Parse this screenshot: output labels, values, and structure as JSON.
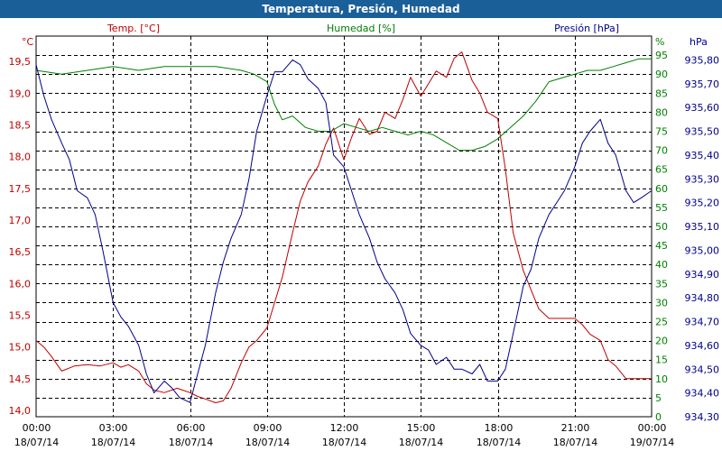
{
  "title": "Temperatura, Presión, Humedad",
  "colors": {
    "title_bar": "#1b5f98",
    "temperature": "#c00000",
    "humidity": "#008000",
    "pressure": "#00008b",
    "grid": "#000000"
  },
  "chart_data": {
    "type": "line",
    "grid": true,
    "axes": {
      "temperature": {
        "unit": "°C",
        "ylim": [
          13.9,
          19.9
        ],
        "ticks": [
          "14,0",
          "14,5",
          "15,0",
          "15,5",
          "16,0",
          "16,5",
          "17,0",
          "17,5",
          "18,0",
          "18,5",
          "19,0",
          "19,5"
        ]
      },
      "humidity": {
        "unit": "%",
        "ylim": [
          0,
          100
        ],
        "ticks": [
          "0",
          "5",
          "10",
          "15",
          "20",
          "25",
          "30",
          "35",
          "40",
          "45",
          "50",
          "55",
          "60",
          "65",
          "70",
          "75",
          "80",
          "85",
          "90",
          "95"
        ]
      },
      "pressure": {
        "unit": "hPa",
        "ylim": [
          934.3,
          935.9
        ],
        "ticks": [
          "934,30",
          "934,40",
          "934,50",
          "934,60",
          "934,70",
          "934,80",
          "934,90",
          "935,00",
          "935,10",
          "935,20",
          "935,30",
          "935,40",
          "935,50",
          "935,60",
          "935,70",
          "935,80"
        ]
      }
    },
    "x_ticks": [
      {
        "time": "00:00",
        "date": "18/07/14"
      },
      {
        "time": "03:00",
        "date": "18/07/14"
      },
      {
        "time": "06:00",
        "date": "18/07/14"
      },
      {
        "time": "09:00",
        "date": "18/07/14"
      },
      {
        "time": "12:00",
        "date": "18/07/14"
      },
      {
        "time": "15:00",
        "date": "18/07/14"
      },
      {
        "time": "18:00",
        "date": "18/07/14"
      },
      {
        "time": "21:00",
        "date": "18/07/14"
      },
      {
        "time": "00:00",
        "date": "19/07/14"
      }
    ],
    "x_unit": "hours since 18/07/14 00:00",
    "xlim": [
      0,
      24
    ],
    "series": [
      {
        "name": "Temp. [°C]",
        "axis": "temperature",
        "color": "#c00000",
        "x": [
          0,
          0.3,
          0.6,
          1,
          1.5,
          2,
          2.5,
          3,
          3.3,
          3.6,
          4,
          4.3,
          4.6,
          5,
          5.5,
          6,
          6.3,
          6.6,
          7,
          7.3,
          7.6,
          8,
          8.3,
          8.6,
          9,
          9.3,
          9.6,
          10,
          10.3,
          10.6,
          11,
          11.3,
          11.6,
          12,
          12.3,
          12.6,
          13,
          13.3,
          13.6,
          14,
          14.3,
          14.6,
          15,
          15.3,
          15.6,
          16,
          16.3,
          16.6,
          17,
          17.3,
          17.6,
          18,
          18.3,
          18.6,
          19,
          19.3,
          19.6,
          20,
          20.3,
          20.6,
          21,
          21.3,
          21.6,
          22,
          22.3,
          22.6,
          23,
          23.3,
          23.6,
          24
        ],
        "values": [
          15.1,
          15.0,
          14.85,
          14.62,
          14.7,
          14.72,
          14.7,
          14.75,
          14.68,
          14.72,
          14.62,
          14.42,
          14.32,
          14.28,
          14.35,
          14.28,
          14.22,
          14.18,
          14.12,
          14.15,
          14.35,
          14.75,
          15.0,
          15.1,
          15.3,
          15.7,
          16.1,
          16.8,
          17.3,
          17.6,
          17.85,
          18.2,
          18.45,
          17.95,
          18.3,
          18.6,
          18.35,
          18.4,
          18.7,
          18.6,
          18.9,
          19.25,
          18.95,
          19.15,
          19.35,
          19.25,
          19.55,
          19.65,
          19.2,
          19.0,
          18.7,
          18.6,
          17.8,
          16.8,
          16.2,
          15.9,
          15.6,
          15.45,
          15.45,
          15.45,
          15.45,
          15.35,
          15.2,
          15.1,
          14.8,
          14.7,
          14.5,
          14.5,
          14.5,
          14.5
        ]
      },
      {
        "name": "Humedad [%]",
        "axis": "humidity",
        "color": "#008000",
        "x": [
          0,
          1,
          2,
          3,
          4,
          5,
          6,
          7,
          8,
          8.5,
          9,
          9.3,
          9.6,
          10,
          10.5,
          11,
          11.5,
          12,
          12.5,
          13,
          13.5,
          14,
          14.5,
          15,
          15.5,
          16,
          16.5,
          17,
          17.5,
          18,
          18.5,
          19,
          19.5,
          20,
          20.5,
          21,
          21.5,
          22,
          22.5,
          23,
          23.5,
          24
        ],
        "values": [
          91,
          90,
          91,
          92,
          91,
          92,
          92,
          92,
          91,
          90,
          88,
          82,
          78,
          79,
          76,
          75,
          75,
          77,
          76,
          75,
          76,
          75,
          74,
          75,
          74,
          72,
          70,
          70,
          71,
          73,
          76,
          79,
          83,
          88,
          89,
          90,
          91,
          91,
          92,
          93,
          94,
          94
        ]
      },
      {
        "name": "Presión [hPa]",
        "axis": "pressure",
        "color": "#00008b",
        "x": [
          0,
          0.3,
          0.6,
          1,
          1.3,
          1.6,
          2,
          2.3,
          2.6,
          3,
          3.3,
          3.6,
          4,
          4.3,
          4.6,
          5,
          5.3,
          5.6,
          6,
          6.3,
          6.6,
          7,
          7.3,
          7.6,
          8,
          8.3,
          8.6,
          9,
          9.3,
          9.6,
          10,
          10.3,
          10.6,
          11,
          11.3,
          11.6,
          12,
          12.3,
          12.6,
          13,
          13.3,
          13.6,
          14,
          14.3,
          14.6,
          15,
          15.3,
          15.6,
          16,
          16.3,
          16.6,
          17,
          17.3,
          17.6,
          18,
          18.3,
          18.6,
          19,
          19.3,
          19.6,
          20,
          20.3,
          20.6,
          21,
          21.3,
          21.6,
          22,
          22.3,
          22.6,
          23,
          23.3,
          23.6,
          24
        ],
        "values": [
          935.78,
          935.65,
          935.55,
          935.45,
          935.38,
          935.25,
          935.22,
          935.15,
          935.0,
          934.78,
          934.72,
          934.68,
          934.6,
          934.48,
          934.4,
          934.45,
          934.42,
          934.38,
          934.36,
          934.48,
          934.6,
          934.82,
          934.95,
          935.05,
          935.15,
          935.3,
          935.5,
          935.65,
          935.75,
          935.75,
          935.8,
          935.78,
          935.72,
          935.68,
          935.62,
          935.4,
          935.35,
          935.25,
          935.15,
          935.05,
          934.95,
          934.88,
          934.82,
          934.75,
          934.65,
          934.6,
          934.58,
          934.52,
          934.55,
          934.5,
          934.5,
          934.48,
          934.52,
          934.45,
          934.45,
          934.5,
          934.65,
          934.85,
          934.92,
          935.05,
          935.15,
          935.2,
          935.25,
          935.35,
          935.45,
          935.5,
          935.55,
          935.45,
          935.4,
          935.25,
          935.2,
          935.22,
          935.25
        ]
      }
    ]
  }
}
